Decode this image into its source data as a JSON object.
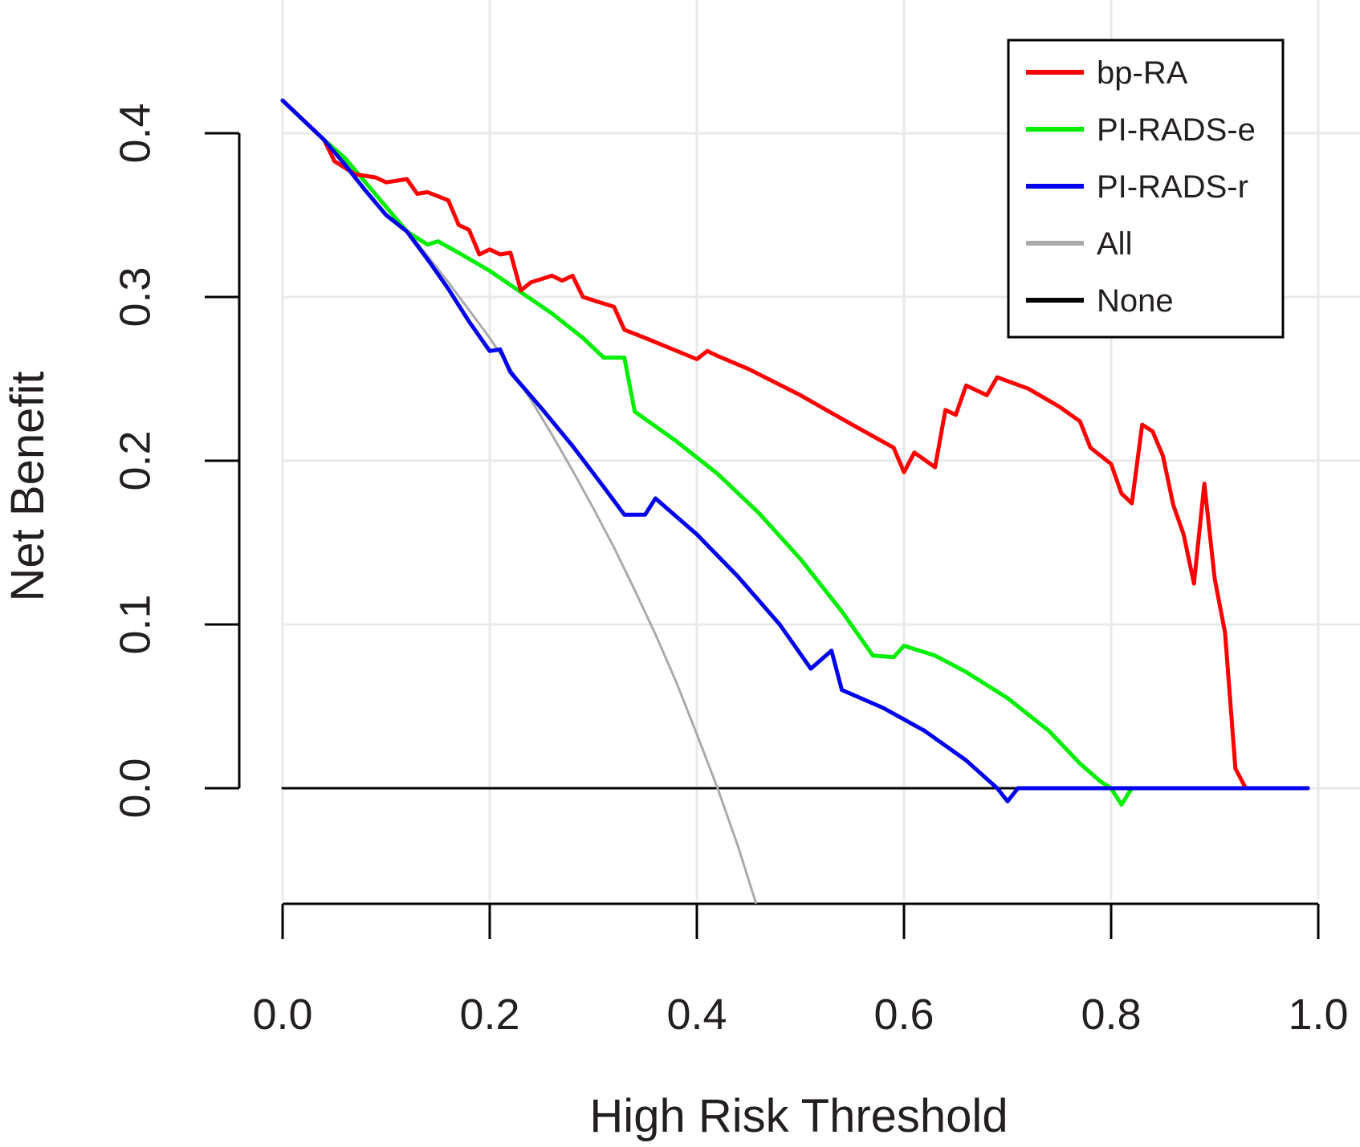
{
  "chart_data": {
    "type": "line",
    "title": "",
    "xlabel": "High Risk Threshold",
    "ylabel": "Net Benefit",
    "xlim": [
      0.0,
      1.0
    ],
    "ylim": [
      -0.07,
      0.42
    ],
    "grid": true,
    "x_ticks": [
      0.0,
      0.2,
      0.4,
      0.6,
      0.8,
      1.0
    ],
    "x_tick_labels": [
      "0.0",
      "0.2",
      "0.4",
      "0.6",
      "0.8",
      "1.0"
    ],
    "y_ticks": [
      0.0,
      0.1,
      0.2,
      0.3,
      0.4
    ],
    "y_tick_labels": [
      "0.0",
      "0.1",
      "0.2",
      "0.3",
      "0.4"
    ],
    "legend_position": "top-right",
    "series": [
      {
        "name": "bp-RA",
        "color": "#ff0000",
        "x": [
          0.0,
          0.04,
          0.05,
          0.07,
          0.09,
          0.1,
          0.11,
          0.12,
          0.13,
          0.14,
          0.16,
          0.17,
          0.18,
          0.19,
          0.2,
          0.21,
          0.22,
          0.23,
          0.24,
          0.25,
          0.26,
          0.27,
          0.28,
          0.29,
          0.3,
          0.32,
          0.33,
          0.35,
          0.4,
          0.41,
          0.42,
          0.45,
          0.5,
          0.55,
          0.59,
          0.6,
          0.61,
          0.63,
          0.64,
          0.65,
          0.66,
          0.68,
          0.69,
          0.72,
          0.75,
          0.77,
          0.78,
          0.8,
          0.81,
          0.82,
          0.83,
          0.84,
          0.85,
          0.86,
          0.87,
          0.88,
          0.89,
          0.9,
          0.91,
          0.92,
          0.93,
          0.99
        ],
        "y": [
          0.42,
          0.396,
          0.383,
          0.375,
          0.373,
          0.37,
          0.371,
          0.372,
          0.363,
          0.364,
          0.359,
          0.344,
          0.341,
          0.326,
          0.329,
          0.326,
          0.327,
          0.304,
          0.309,
          0.311,
          0.313,
          0.31,
          0.313,
          0.3,
          0.298,
          0.294,
          0.28,
          0.275,
          0.262,
          0.267,
          0.264,
          0.256,
          0.24,
          0.222,
          0.208,
          0.193,
          0.205,
          0.196,
          0.231,
          0.228,
          0.246,
          0.24,
          0.251,
          0.244,
          0.233,
          0.224,
          0.208,
          0.198,
          0.18,
          0.174,
          0.222,
          0.218,
          0.203,
          0.173,
          0.155,
          0.125,
          0.186,
          0.128,
          0.095,
          0.012,
          0.0,
          0.0
        ]
      },
      {
        "name": "PI-RADS-e",
        "color": "#00ee00",
        "x": [
          0.0,
          0.02,
          0.04,
          0.06,
          0.08,
          0.1,
          0.12,
          0.14,
          0.15,
          0.17,
          0.2,
          0.23,
          0.26,
          0.29,
          0.31,
          0.33,
          0.34,
          0.38,
          0.42,
          0.46,
          0.5,
          0.54,
          0.57,
          0.59,
          0.6,
          0.63,
          0.66,
          0.7,
          0.74,
          0.77,
          0.79,
          0.8,
          0.81,
          0.82,
          0.99
        ],
        "y": [
          0.42,
          0.408,
          0.396,
          0.385,
          0.37,
          0.355,
          0.34,
          0.332,
          0.334,
          0.327,
          0.316,
          0.303,
          0.29,
          0.275,
          0.263,
          0.263,
          0.23,
          0.212,
          0.192,
          0.168,
          0.14,
          0.108,
          0.081,
          0.08,
          0.087,
          0.081,
          0.071,
          0.055,
          0.035,
          0.015,
          0.004,
          0.0,
          -0.01,
          0.0,
          0.0
        ]
      },
      {
        "name": "PI-RADS-r",
        "color": "#0000ee",
        "x": [
          0.0,
          0.02,
          0.04,
          0.06,
          0.08,
          0.1,
          0.11,
          0.12,
          0.14,
          0.16,
          0.18,
          0.2,
          0.21,
          0.22,
          0.25,
          0.28,
          0.31,
          0.33,
          0.35,
          0.36,
          0.4,
          0.44,
          0.48,
          0.51,
          0.53,
          0.54,
          0.58,
          0.62,
          0.66,
          0.69,
          0.7,
          0.71,
          0.99
        ],
        "y": [
          0.42,
          0.408,
          0.396,
          0.381,
          0.365,
          0.35,
          0.345,
          0.34,
          0.323,
          0.305,
          0.285,
          0.267,
          0.268,
          0.254,
          0.232,
          0.209,
          0.184,
          0.167,
          0.167,
          0.177,
          0.155,
          0.129,
          0.1,
          0.073,
          0.084,
          0.06,
          0.049,
          0.035,
          0.017,
          0.0,
          -0.008,
          0.0,
          0.0
        ]
      },
      {
        "name": "All",
        "color": "#aaaaaa",
        "x": [
          0.0,
          0.04,
          0.08,
          0.12,
          0.16,
          0.2,
          0.22,
          0.24,
          0.26,
          0.28,
          0.3,
          0.32,
          0.34,
          0.36,
          0.38,
          0.4,
          0.42,
          0.44,
          0.457
        ],
        "y": [
          0.42,
          0.396,
          0.37,
          0.341,
          0.309,
          0.275,
          0.256,
          0.237,
          0.216,
          0.194,
          0.171,
          0.147,
          0.121,
          0.094,
          0.065,
          0.033,
          0.0,
          -0.036,
          -0.07
        ]
      },
      {
        "name": "None",
        "color": "#000000",
        "x": [
          0.0,
          0.99
        ],
        "y": [
          0.0,
          0.0
        ]
      }
    ]
  }
}
